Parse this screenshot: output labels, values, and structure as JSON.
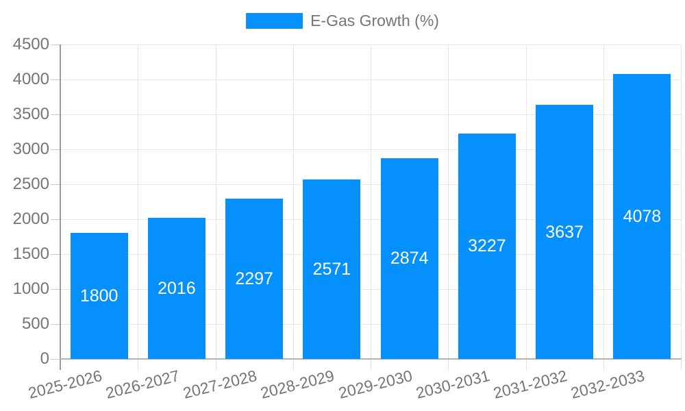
{
  "chart_data": {
    "type": "bar",
    "title": "",
    "legend": {
      "label": "E-Gas Growth (%)",
      "position": "top"
    },
    "categories": [
      "2025-2026",
      "2026-2027",
      "2027-2028",
      "2028-2029",
      "2029-2030",
      "2030-2031",
      "2031-2032",
      "2032-2033"
    ],
    "series": [
      {
        "name": "E-Gas Growth (%)",
        "values": [
          1800,
          2016,
          2297,
          2571,
          2874,
          3227,
          3637,
          4078
        ]
      }
    ],
    "data_labels": [
      "1800",
      "2016",
      "2297",
      "2571",
      "2874",
      "3227",
      "3637",
      "4078"
    ],
    "yticks": [
      0,
      500,
      1000,
      1500,
      2000,
      2500,
      3000,
      3500,
      4000,
      4500
    ],
    "ylim": [
      0,
      4500
    ],
    "xlabel": "",
    "ylabel": "",
    "grid": true,
    "colors": {
      "bar": "#0590fb",
      "axis_label": "#757575",
      "data_label": "#ffffff",
      "gridline": "#e7e7e7",
      "baseline": "#b2b2b2",
      "yaxis_line": "#9a9a9a"
    }
  }
}
